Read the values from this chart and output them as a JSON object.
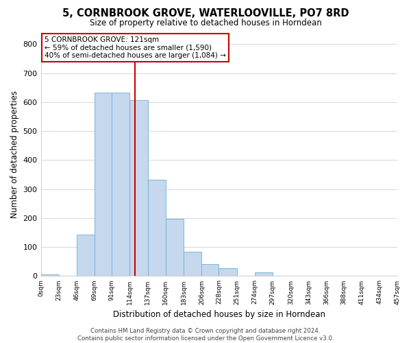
{
  "title": "5, CORNBROOK GROVE, WATERLOOVILLE, PO7 8RD",
  "subtitle": "Size of property relative to detached houses in Horndean",
  "xlabel": "Distribution of detached houses by size in Horndean",
  "ylabel": "Number of detached properties",
  "bar_edges": [
    0,
    23,
    46,
    69,
    91,
    114,
    137,
    160,
    183,
    206,
    228,
    251,
    274,
    297,
    320,
    343,
    366,
    388,
    411,
    434,
    457
  ],
  "bar_heights": [
    5,
    0,
    143,
    632,
    632,
    608,
    332,
    198,
    83,
    42,
    27,
    0,
    13,
    0,
    0,
    0,
    0,
    0,
    0,
    0
  ],
  "bar_color": "#c5d8ed",
  "bar_edge_color": "#6baed6",
  "vline_x": 121,
  "vline_color": "#cc0000",
  "ylim": [
    0,
    840
  ],
  "yticks": [
    0,
    100,
    200,
    300,
    400,
    500,
    600,
    700,
    800
  ],
  "tick_labels": [
    "0sqm",
    "23sqm",
    "46sqm",
    "69sqm",
    "91sqm",
    "114sqm",
    "137sqm",
    "160sqm",
    "183sqm",
    "206sqm",
    "228sqm",
    "251sqm",
    "274sqm",
    "297sqm",
    "320sqm",
    "343sqm",
    "366sqm",
    "388sqm",
    "411sqm",
    "434sqm",
    "457sqm"
  ],
  "annotation_title": "5 CORNBROOK GROVE: 121sqm",
  "annotation_line1": "← 59% of detached houses are smaller (1,590)",
  "annotation_line2": "40% of semi-detached houses are larger (1,084) →",
  "annotation_box_color": "#ffffff",
  "annotation_box_edge": "#cc0000",
  "footer1": "Contains HM Land Registry data © Crown copyright and database right 2024.",
  "footer2": "Contains public sector information licensed under the Open Government Licence v3.0.",
  "bg_color": "#ffffff",
  "grid_color": "#d0dce8"
}
